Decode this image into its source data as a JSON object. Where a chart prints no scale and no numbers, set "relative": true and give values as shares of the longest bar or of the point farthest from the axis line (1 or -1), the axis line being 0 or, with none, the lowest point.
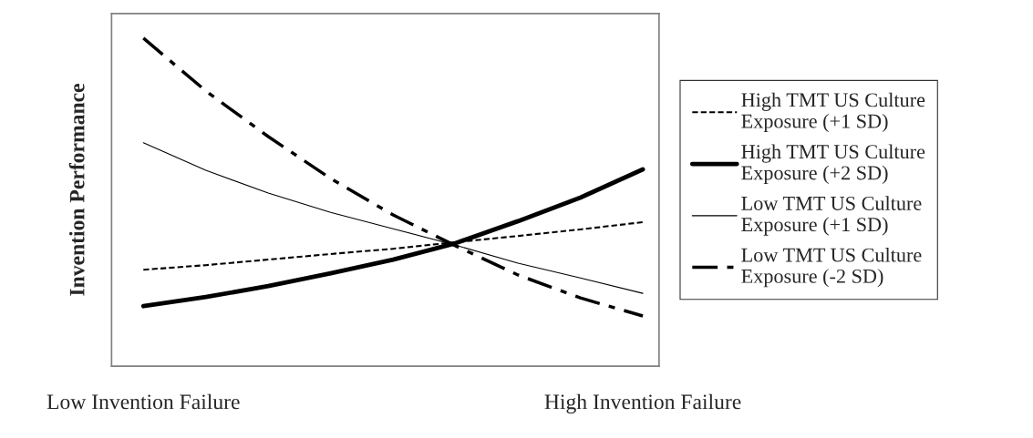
{
  "chart_data": {
    "type": "line",
    "relative": true,
    "ylabel": "Invention Performance",
    "categories": [
      "Low Invention Failure",
      null,
      null,
      null,
      null,
      null,
      null,
      null,
      "High Invention Failure"
    ],
    "series": [
      {
        "name": "High TMT US Culture\nExposure (+1 SD)",
        "color": "#000000",
        "line_style": "dashed",
        "values": [
          0.294,
          0.308,
          0.325,
          0.342,
          0.358,
          0.378,
          0.397,
          0.417,
          0.439
        ]
      },
      {
        "name": "High TMT US Culture\nExposure (+2 SD)",
        "color": "#000000",
        "line_style": "solid",
        "values": [
          0.183,
          0.211,
          0.244,
          0.283,
          0.325,
          0.375,
          0.442,
          0.514,
          0.6
        ]
      },
      {
        "name": "Low TMT US Culture\nExposure (+1 SD)",
        "color": "#000000",
        "line_style": "solid",
        "values": [
          0.681,
          0.597,
          0.528,
          0.469,
          0.419,
          0.369,
          0.314,
          0.269,
          0.222
        ]
      },
      {
        "name": "Low TMT US Culture\nExposure (-2 SD)",
        "color": "#000000",
        "line_style": "dashdot",
        "values": [
          1,
          0.839,
          0.7,
          0.572,
          0.461,
          0.367,
          0.278,
          0.208,
          0.153
        ]
      }
    ],
    "legend": "right",
    "grid": false
  }
}
